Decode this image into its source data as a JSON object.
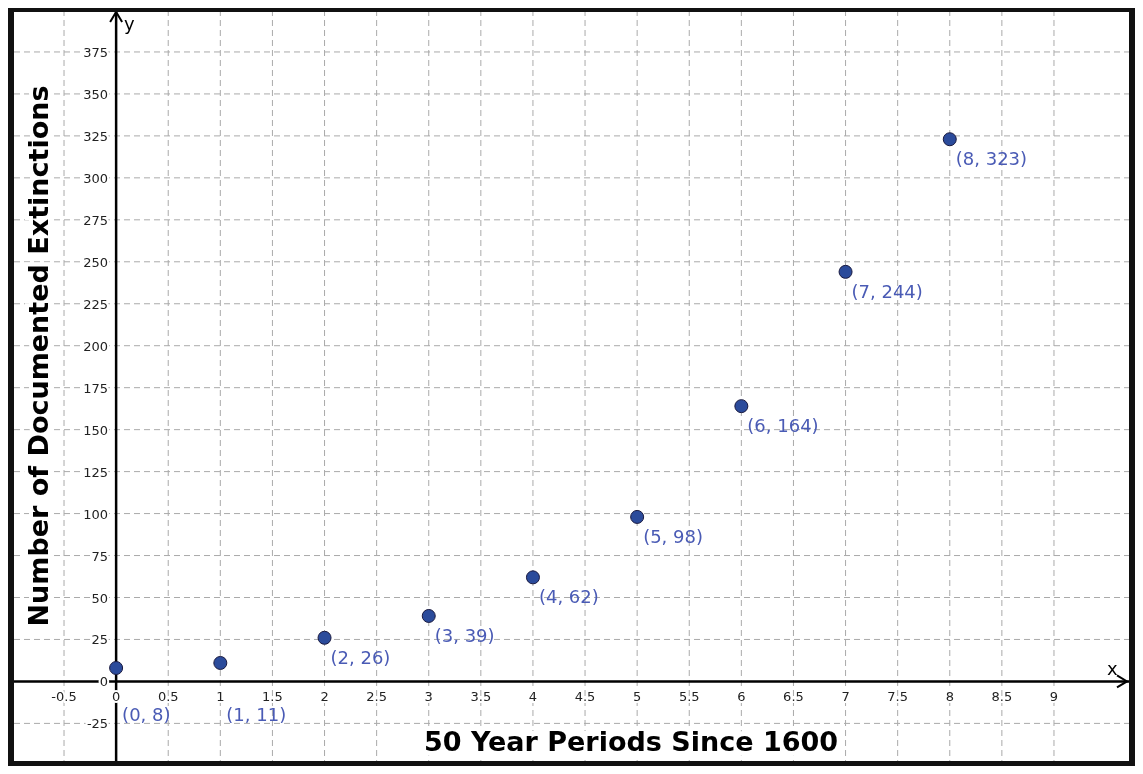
{
  "chart_data": {
    "type": "scatter",
    "xlabel": "50 Year Periods Since 1600",
    "ylabel": "Number of Documented Extinctions",
    "annotations": [
      "x",
      "y"
    ],
    "x": [
      0,
      1,
      2,
      3,
      4,
      5,
      6,
      7,
      8
    ],
    "series": [
      {
        "color": "#2b4b9b",
        "values": [
          8,
          11,
          26,
          39,
          62,
          98,
          164,
          244,
          323
        ],
        "value_labels": [
          "(0, 8)",
          "(1, 11)",
          "(2, 26)",
          "(3, 39)",
          "(4, 62)",
          "(5, 98)",
          "(6, 164)",
          "(7, 244)",
          "(8, 323)"
        ]
      }
    ],
    "xlim": [
      -0.98,
      9.72
    ],
    "ylim": [
      -48,
      400
    ],
    "xticks": [
      -0.5,
      0,
      0.5,
      1,
      1.5,
      2,
      2.5,
      3,
      3.5,
      4,
      4.5,
      5,
      5.5,
      6,
      6.5,
      7,
      7.5,
      8,
      8.5,
      9
    ],
    "yticks": [
      -25,
      0,
      25,
      50,
      75,
      100,
      125,
      150,
      175,
      200,
      225,
      250,
      275,
      300,
      325,
      350,
      375
    ],
    "grid": true,
    "marker": "circle"
  }
}
